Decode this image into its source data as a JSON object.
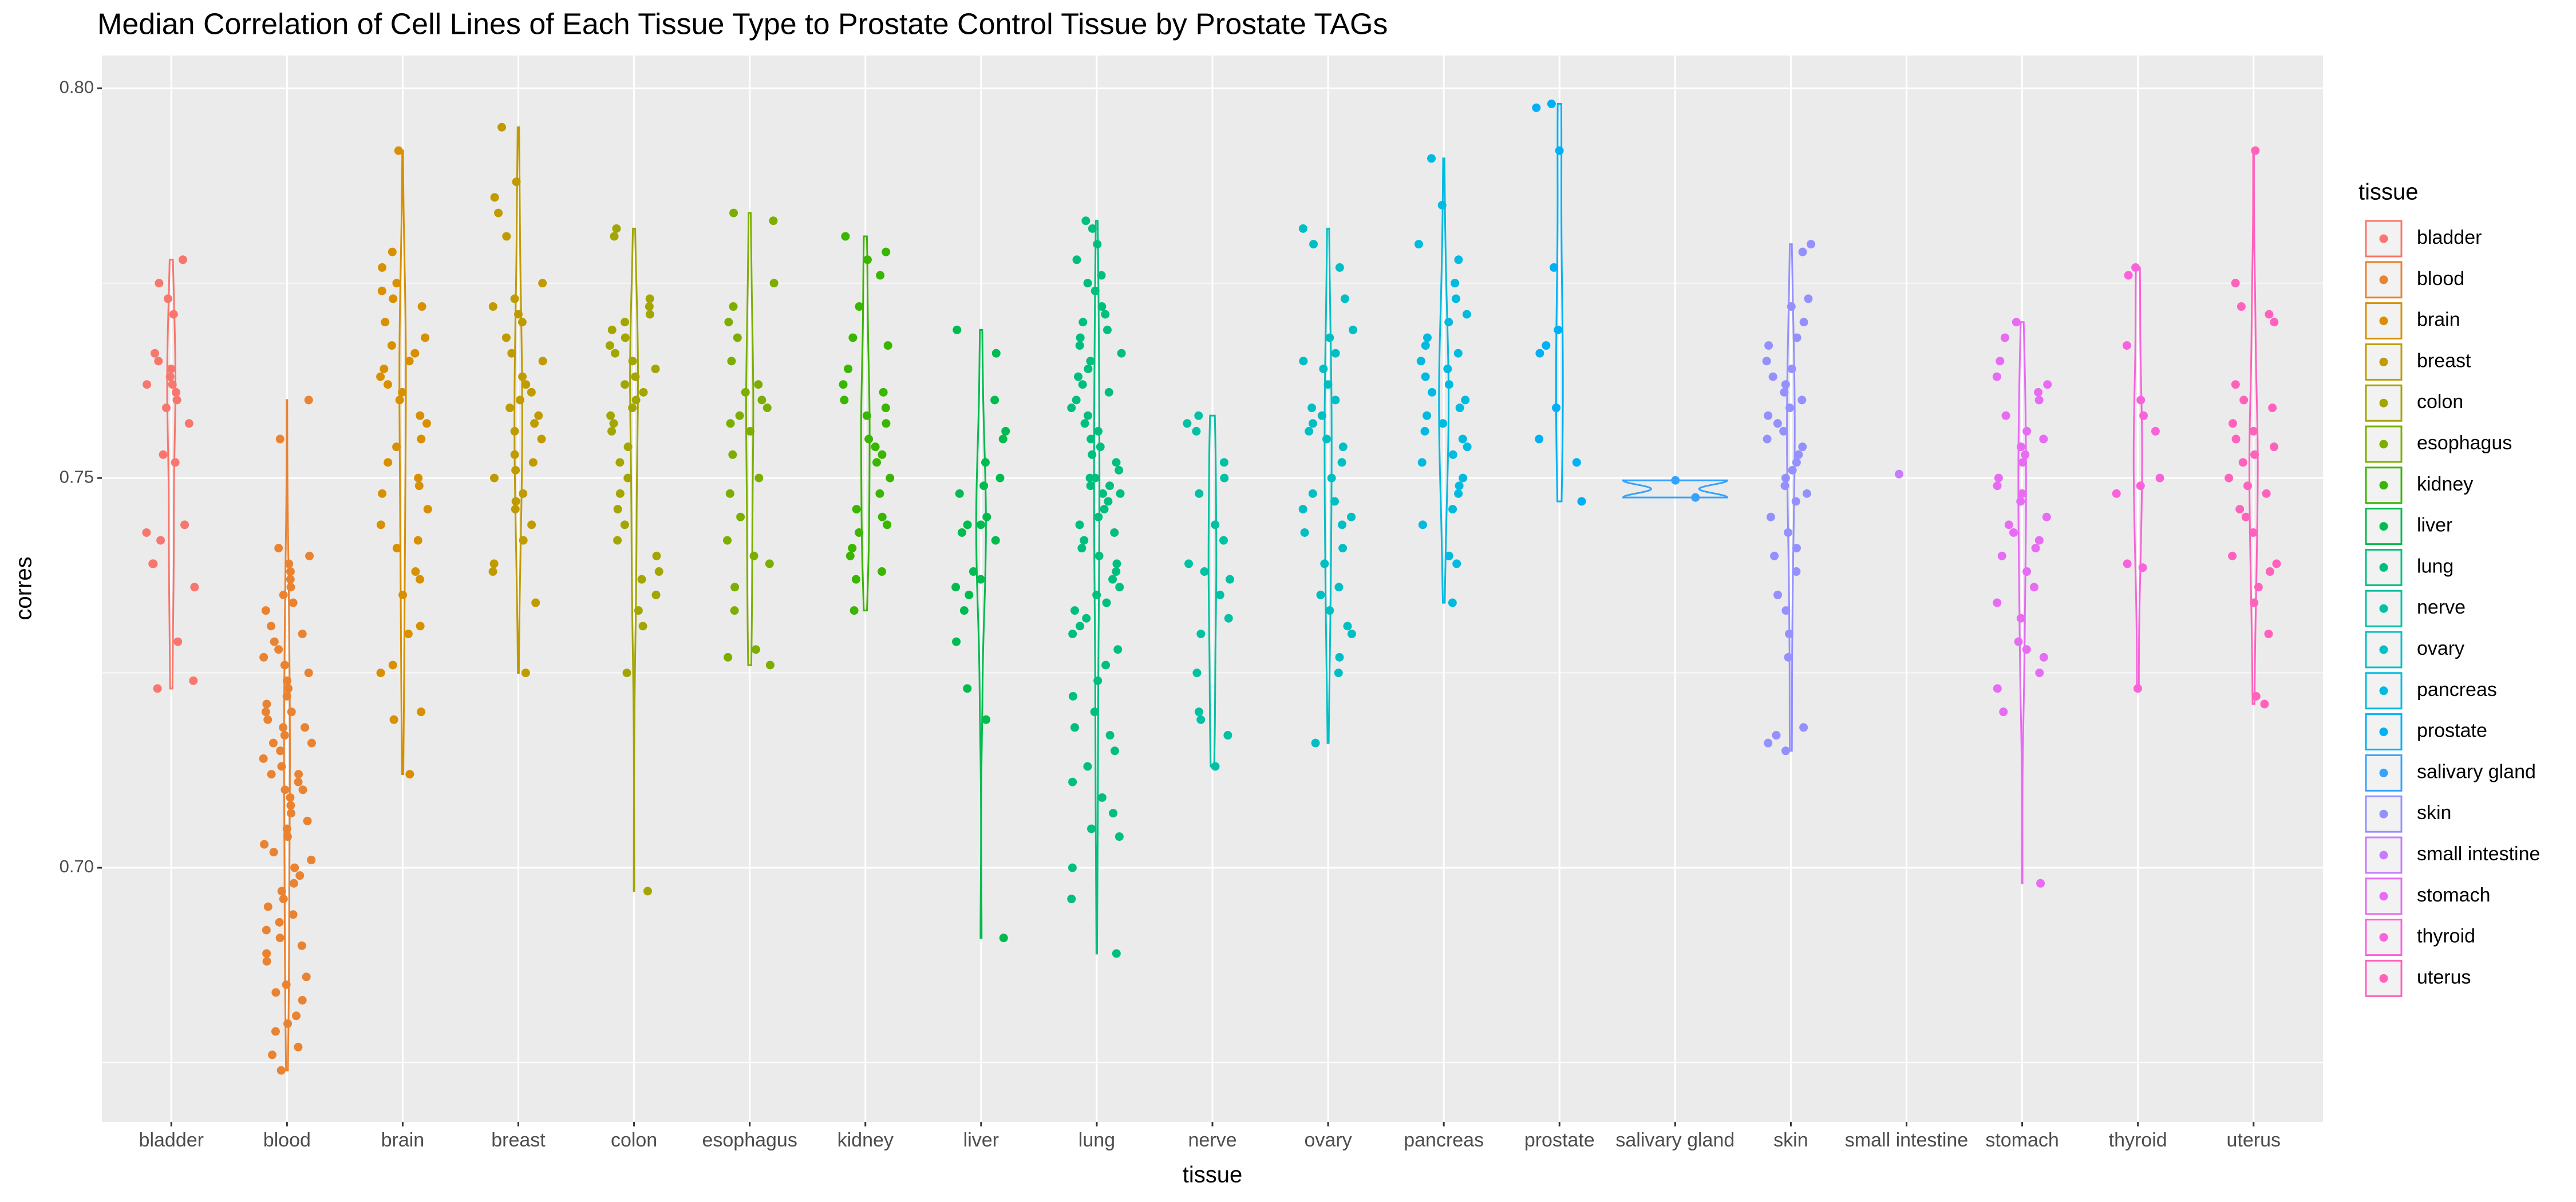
{
  "chart_data": {
    "type": "violin",
    "title": "Median Correlation of Cell Lines of Each Tissue Type to Prostate Control Tissue by Prostate TAGs",
    "x_label": "tissue",
    "y_label": "corres",
    "legend_title": "tissue",
    "legend_position": "right",
    "grid": true,
    "ylim": [
      0.6674,
      0.8042
    ],
    "yticks": [
      {
        "value": 0.7,
        "label": "0.70"
      },
      {
        "value": 0.75,
        "label": "0.75"
      },
      {
        "value": 0.8,
        "label": "0.80"
      }
    ],
    "minor_yticks": [
      0.675,
      0.725,
      0.775
    ],
    "categories": [
      "bladder",
      "blood",
      "brain",
      "breast",
      "colon",
      "esophagus",
      "kidney",
      "liver",
      "lung",
      "nerve",
      "ovary",
      "pancreas",
      "prostate",
      "salivary gland",
      "skin",
      "small intestine",
      "stomach",
      "thyroid",
      "uterus"
    ],
    "series": [
      {
        "name": "bladder",
        "color": "#F8766D",
        "values": [
          0.775,
          0.773,
          0.771,
          0.778,
          0.766,
          0.765,
          0.764,
          0.763,
          0.762,
          0.762,
          0.761,
          0.76,
          0.759,
          0.757,
          0.753,
          0.752,
          0.744,
          0.743,
          0.742,
          0.739,
          0.739,
          0.736,
          0.729,
          0.724,
          0.723
        ]
      },
      {
        "name": "blood",
        "color": "#EA8331",
        "values": [
          0.76,
          0.755,
          0.741,
          0.74,
          0.739,
          0.738,
          0.737,
          0.736,
          0.735,
          0.734,
          0.733,
          0.731,
          0.73,
          0.729,
          0.728,
          0.727,
          0.726,
          0.725,
          0.724,
          0.723,
          0.722,
          0.721,
          0.72,
          0.72,
          0.719,
          0.718,
          0.718,
          0.717,
          0.716,
          0.716,
          0.715,
          0.714,
          0.713,
          0.712,
          0.712,
          0.711,
          0.71,
          0.71,
          0.709,
          0.708,
          0.707,
          0.706,
          0.705,
          0.704,
          0.703,
          0.702,
          0.701,
          0.7,
          0.699,
          0.698,
          0.697,
          0.696,
          0.695,
          0.694,
          0.693,
          0.692,
          0.691,
          0.69,
          0.689,
          0.688,
          0.686,
          0.685,
          0.684,
          0.683,
          0.681,
          0.68,
          0.679,
          0.677,
          0.676,
          0.674
        ]
      },
      {
        "name": "brain",
        "color": "#D89000",
        "values": [
          0.792,
          0.779,
          0.777,
          0.775,
          0.774,
          0.773,
          0.772,
          0.77,
          0.768,
          0.767,
          0.766,
          0.765,
          0.764,
          0.763,
          0.762,
          0.761,
          0.76,
          0.758,
          0.757,
          0.755,
          0.754,
          0.752,
          0.75,
          0.749,
          0.748,
          0.746,
          0.744,
          0.742,
          0.741,
          0.738,
          0.737,
          0.735,
          0.731,
          0.73,
          0.726,
          0.725,
          0.72,
          0.719,
          0.712
        ]
      },
      {
        "name": "breast",
        "color": "#C09B00",
        "values": [
          0.795,
          0.788,
          0.786,
          0.784,
          0.781,
          0.775,
          0.773,
          0.772,
          0.771,
          0.77,
          0.768,
          0.766,
          0.765,
          0.763,
          0.762,
          0.761,
          0.76,
          0.759,
          0.758,
          0.757,
          0.756,
          0.755,
          0.753,
          0.752,
          0.751,
          0.75,
          0.748,
          0.747,
          0.746,
          0.744,
          0.742,
          0.739,
          0.738,
          0.734,
          0.725
        ]
      },
      {
        "name": "colon",
        "color": "#A3A500",
        "values": [
          0.782,
          0.781,
          0.773,
          0.772,
          0.771,
          0.77,
          0.769,
          0.768,
          0.767,
          0.766,
          0.765,
          0.764,
          0.763,
          0.762,
          0.761,
          0.76,
          0.759,
          0.758,
          0.757,
          0.756,
          0.754,
          0.752,
          0.75,
          0.748,
          0.746,
          0.744,
          0.742,
          0.74,
          0.738,
          0.737,
          0.735,
          0.733,
          0.731,
          0.725,
          0.697
        ]
      },
      {
        "name": "esophagus",
        "color": "#7CAE00",
        "values": [
          0.784,
          0.783,
          0.775,
          0.772,
          0.77,
          0.768,
          0.765,
          0.762,
          0.761,
          0.76,
          0.759,
          0.758,
          0.757,
          0.756,
          0.753,
          0.75,
          0.748,
          0.745,
          0.742,
          0.74,
          0.739,
          0.736,
          0.733,
          0.728,
          0.727,
          0.726
        ]
      },
      {
        "name": "kidney",
        "color": "#39B600",
        "values": [
          0.781,
          0.779,
          0.778,
          0.776,
          0.772,
          0.768,
          0.767,
          0.764,
          0.762,
          0.761,
          0.76,
          0.759,
          0.758,
          0.757,
          0.755,
          0.754,
          0.753,
          0.752,
          0.75,
          0.748,
          0.746,
          0.745,
          0.744,
          0.743,
          0.741,
          0.74,
          0.738,
          0.737,
          0.733
        ]
      },
      {
        "name": "liver",
        "color": "#00BB4E",
        "values": [
          0.769,
          0.766,
          0.76,
          0.756,
          0.755,
          0.752,
          0.75,
          0.749,
          0.748,
          0.745,
          0.744,
          0.744,
          0.743,
          0.742,
          0.738,
          0.737,
          0.736,
          0.735,
          0.733,
          0.729,
          0.723,
          0.719,
          0.691
        ]
      },
      {
        "name": "lung",
        "color": "#00BF7D",
        "values": [
          0.783,
          0.782,
          0.78,
          0.778,
          0.776,
          0.775,
          0.774,
          0.772,
          0.771,
          0.77,
          0.769,
          0.768,
          0.767,
          0.766,
          0.765,
          0.764,
          0.763,
          0.762,
          0.761,
          0.76,
          0.759,
          0.758,
          0.757,
          0.756,
          0.755,
          0.754,
          0.753,
          0.752,
          0.751,
          0.75,
          0.75,
          0.749,
          0.749,
          0.748,
          0.748,
          0.747,
          0.746,
          0.745,
          0.744,
          0.743,
          0.742,
          0.741,
          0.74,
          0.739,
          0.738,
          0.737,
          0.736,
          0.735,
          0.734,
          0.733,
          0.732,
          0.731,
          0.73,
          0.728,
          0.726,
          0.724,
          0.722,
          0.72,
          0.718,
          0.717,
          0.715,
          0.713,
          0.711,
          0.709,
          0.707,
          0.705,
          0.704,
          0.7,
          0.696,
          0.689
        ]
      },
      {
        "name": "nerve",
        "color": "#00C1A3",
        "values": [
          0.758,
          0.757,
          0.756,
          0.752,
          0.75,
          0.748,
          0.744,
          0.742,
          0.739,
          0.738,
          0.737,
          0.735,
          0.732,
          0.73,
          0.725,
          0.72,
          0.719,
          0.717,
          0.713
        ]
      },
      {
        "name": "ovary",
        "color": "#00BFC4",
        "values": [
          0.782,
          0.78,
          0.777,
          0.773,
          0.769,
          0.768,
          0.766,
          0.765,
          0.764,
          0.762,
          0.76,
          0.759,
          0.758,
          0.757,
          0.756,
          0.755,
          0.754,
          0.752,
          0.75,
          0.748,
          0.747,
          0.746,
          0.745,
          0.744,
          0.743,
          0.741,
          0.739,
          0.736,
          0.735,
          0.733,
          0.731,
          0.73,
          0.727,
          0.725,
          0.716
        ]
      },
      {
        "name": "pancreas",
        "color": "#00BAE0",
        "values": [
          0.791,
          0.785,
          0.78,
          0.778,
          0.775,
          0.773,
          0.771,
          0.77,
          0.768,
          0.767,
          0.766,
          0.765,
          0.764,
          0.763,
          0.762,
          0.761,
          0.76,
          0.759,
          0.758,
          0.757,
          0.756,
          0.755,
          0.754,
          0.753,
          0.752,
          0.75,
          0.749,
          0.748,
          0.746,
          0.744,
          0.74,
          0.739,
          0.734
        ]
      },
      {
        "name": "prostate",
        "color": "#00B0F6",
        "values": [
          0.798,
          0.7975,
          0.792,
          0.777,
          0.769,
          0.767,
          0.766,
          0.759,
          0.755,
          0.752,
          0.747
        ]
      },
      {
        "name": "salivary gland",
        "color": "#35A2FF",
        "values": [
          0.7497,
          0.7475
        ]
      },
      {
        "name": "skin",
        "color": "#9590FF",
        "values": [
          0.78,
          0.779,
          0.773,
          0.772,
          0.77,
          0.768,
          0.767,
          0.765,
          0.764,
          0.763,
          0.762,
          0.761,
          0.76,
          0.759,
          0.758,
          0.757,
          0.756,
          0.755,
          0.754,
          0.753,
          0.752,
          0.751,
          0.75,
          0.749,
          0.748,
          0.747,
          0.745,
          0.743,
          0.741,
          0.74,
          0.738,
          0.735,
          0.733,
          0.73,
          0.727,
          0.718,
          0.717,
          0.716,
          0.715
        ]
      },
      {
        "name": "small intestine",
        "color": "#C77CFF",
        "values": [
          0.7505
        ]
      },
      {
        "name": "stomach",
        "color": "#E76BF3",
        "values": [
          0.77,
          0.768,
          0.765,
          0.763,
          0.762,
          0.761,
          0.76,
          0.758,
          0.756,
          0.755,
          0.754,
          0.753,
          0.752,
          0.75,
          0.749,
          0.748,
          0.747,
          0.745,
          0.744,
          0.743,
          0.742,
          0.741,
          0.74,
          0.738,
          0.736,
          0.734,
          0.732,
          0.729,
          0.728,
          0.727,
          0.725,
          0.723,
          0.72,
          0.698
        ]
      },
      {
        "name": "thyroid",
        "color": "#FA62DB",
        "values": [
          0.777,
          0.776,
          0.767,
          0.76,
          0.758,
          0.756,
          0.75,
          0.749,
          0.748,
          0.739,
          0.7385,
          0.723
        ]
      },
      {
        "name": "uterus",
        "color": "#FF62BC",
        "values": [
          0.792,
          0.775,
          0.772,
          0.771,
          0.77,
          0.762,
          0.76,
          0.759,
          0.757,
          0.756,
          0.755,
          0.754,
          0.753,
          0.752,
          0.75,
          0.749,
          0.748,
          0.746,
          0.745,
          0.743,
          0.74,
          0.739,
          0.738,
          0.736,
          0.734,
          0.73,
          0.722,
          0.721
        ]
      }
    ]
  }
}
